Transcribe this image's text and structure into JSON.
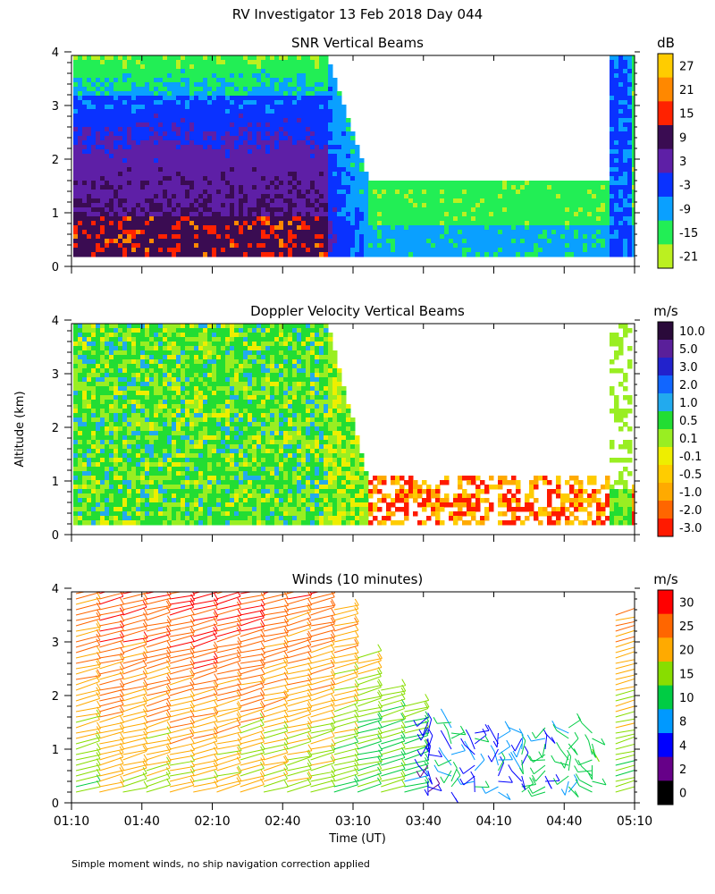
{
  "title": "RV Investigator  13 Feb 2018 Day 044",
  "ylabel": "Altitude (km)",
  "xlabel": "Time (UT)",
  "footnote": "Simple moment winds, no ship navigation correction applied",
  "x_ticks": [
    "01:10",
    "01:40",
    "02:10",
    "02:40",
    "03:10",
    "03:40",
    "04:10",
    "04:40",
    "05:10"
  ],
  "y_ticks": [
    "0",
    "1",
    "2",
    "3",
    "4"
  ],
  "chart_data": [
    {
      "type": "heatmap",
      "title": "SNR Vertical Beams",
      "unit": "dB",
      "xlim": [
        "01:10",
        "05:10"
      ],
      "ylim": [
        0,
        4
      ],
      "colorbar": {
        "labels": [
          "27",
          "21",
          "15",
          "9",
          "3",
          "-3",
          "-9",
          "-15",
          "-21"
        ],
        "colors": [
          "#ffcc00",
          "#ff8800",
          "#ff2200",
          "#3a0c52",
          "#5e1fa6",
          "#0a32ff",
          "#0aa0ff",
          "#22ee55",
          "#bbf020"
        ]
      },
      "regions": [
        {
          "desc": "high SNR 9..15 dB with patches of 15-21 dB near surface",
          "time": [
            "01:15",
            "03:00"
          ],
          "alt": [
            0.2,
            1.0
          ]
        },
        {
          "desc": "3..9 dB",
          "time": [
            "01:15",
            "03:00"
          ],
          "alt": [
            1.0,
            2.2
          ]
        },
        {
          "desc": "-3..3 dB",
          "time": [
            "01:15",
            "03:00"
          ],
          "alt": [
            2.2,
            3.2
          ]
        },
        {
          "desc": "-21..-9 dB",
          "time": [
            "01:15",
            "03:00"
          ],
          "alt": [
            3.2,
            4.0
          ]
        },
        {
          "desc": "low SNR -21..-9 dB",
          "time": [
            "03:10",
            "05:10"
          ],
          "alt": [
            0.2,
            1.5
          ]
        }
      ]
    },
    {
      "type": "heatmap",
      "title": "Doppler Velocity Vertical Beams",
      "unit": "m/s",
      "xlim": [
        "01:10",
        "05:10"
      ],
      "ylim": [
        0,
        4
      ],
      "colorbar": {
        "labels": [
          "10.0",
          "5.0",
          "3.0",
          "2.0",
          "1.0",
          "0.5",
          "0.1",
          "-0.1",
          "-0.5",
          "-1.0",
          "-2.0",
          "-3.0"
        ],
        "colors": [
          "#2a0a3a",
          "#5a1f9a",
          "#2222cc",
          "#1166ff",
          "#22aaee",
          "#22dd33",
          "#99ee22",
          "#eeee00",
          "#ffcc00",
          "#ffaa00",
          "#ff6600",
          "#ff1a00"
        ]
      },
      "regions": [
        {
          "desc": "mostly 0.1..1.0 m/s",
          "time": [
            "01:15",
            "03:00"
          ],
          "alt": [
            0.2,
            4.0
          ]
        },
        {
          "desc": "-3..-0.5 m/s near surface",
          "time": [
            "03:10",
            "05:05"
          ],
          "alt": [
            0.2,
            1.1
          ]
        }
      ]
    },
    {
      "type": "scatter",
      "title": "Winds (10 minutes)",
      "unit": "m/s",
      "xlim": [
        "01:10",
        "05:10"
      ],
      "ylim": [
        0,
        4
      ],
      "colorbar": {
        "labels": [
          "30",
          "25",
          "20",
          "15",
          "10",
          "8",
          "4",
          "2",
          "0"
        ],
        "colors": [
          "#ff0000",
          "#ff6600",
          "#ffaa00",
          "#88dd00",
          "#00cc44",
          "#0099ff",
          "#0000ff",
          "#660088",
          "#000000"
        ]
      },
      "profiles": [
        {
          "time": "01:10",
          "top": 4.2,
          "speed": 24
        },
        {
          "time": "01:20",
          "top": 4.0,
          "speed": 27
        },
        {
          "time": "01:30",
          "top": 4.1,
          "speed": 26
        },
        {
          "time": "01:40",
          "top": 4.1,
          "speed": 26
        },
        {
          "time": "01:50",
          "top": 4.2,
          "speed": 27
        },
        {
          "time": "02:00",
          "top": 4.2,
          "speed": 28
        },
        {
          "time": "02:10",
          "top": 4.2,
          "speed": 27
        },
        {
          "time": "02:20",
          "top": 4.2,
          "speed": 26
        },
        {
          "time": "02:30",
          "top": 4.1,
          "speed": 25
        },
        {
          "time": "02:40",
          "top": 4.0,
          "speed": 25
        },
        {
          "time": "02:50",
          "top": 4.0,
          "speed": 24
        },
        {
          "time": "03:00",
          "top": 3.7,
          "speed": 22
        },
        {
          "time": "03:10",
          "top": 2.8,
          "speed": 20
        },
        {
          "time": "03:20",
          "top": 2.2,
          "speed": 20
        },
        {
          "time": "03:30",
          "top": 1.9,
          "speed": 19
        },
        {
          "time": "03:40",
          "top": 1.7,
          "speed": 6
        },
        {
          "time": "03:50",
          "top": 1.6,
          "speed": 10
        },
        {
          "time": "04:00",
          "top": 1.4,
          "speed": 8
        },
        {
          "time": "04:10",
          "top": 1.4,
          "speed": 8
        },
        {
          "time": "04:20",
          "top": 1.4,
          "speed": 9
        },
        {
          "time": "04:30",
          "top": 1.5,
          "speed": 10
        },
        {
          "time": "04:40",
          "top": 1.5,
          "speed": 11
        },
        {
          "time": "04:50",
          "top": 1.4,
          "speed": 14
        },
        {
          "time": "05:00",
          "top": 3.6,
          "speed": 22
        }
      ]
    }
  ]
}
